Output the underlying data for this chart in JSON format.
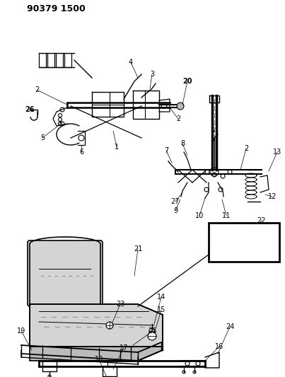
{
  "title": "90379 1500",
  "bg_color": "#ffffff",
  "line_color": "#000000",
  "gray": "#c8c8c8",
  "darkgray": "#888888",
  "title_fontsize": 9,
  "label_fontsize": 7
}
